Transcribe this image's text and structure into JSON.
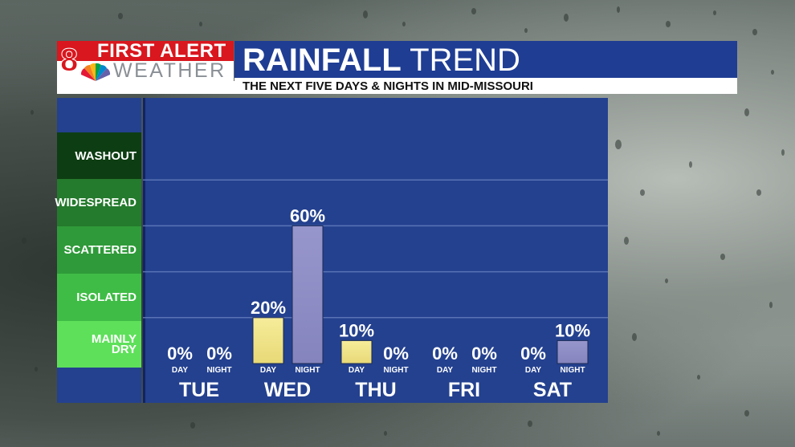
{
  "logo": {
    "number": "8",
    "line1": "FIRST ALERT",
    "line2": "WEATHER"
  },
  "header": {
    "title_bold": "RAINFALL",
    "title_rest": "TREND",
    "subtitle": "THE NEXT FIVE DAYS & NIGHTS IN MID-MISSOURI"
  },
  "colors": {
    "panel_blue": "#24418f",
    "title_blue": "#1f3d93",
    "day_bar": "#e8d977",
    "night_bar": "#8584bd",
    "brand_red": "#d9171e"
  },
  "legend": [
    {
      "label": "WASHOUT",
      "color": "#0d3d12"
    },
    {
      "label": "WIDESPREAD",
      "color": "#247a2d"
    },
    {
      "label": "SCATTERED",
      "color": "#2f9a39"
    },
    {
      "label": "ISOLATED",
      "color": "#3fbc46"
    },
    {
      "label": "MAINLY DRY",
      "color": "#5ee05a"
    }
  ],
  "chart_data": {
    "type": "bar",
    "categories": [
      "TUE",
      "WED",
      "THU",
      "FRI",
      "SAT"
    ],
    "periods": [
      "DAY",
      "NIGHT"
    ],
    "series": [
      {
        "name": "DAY",
        "values": [
          0,
          20,
          10,
          0,
          0
        ]
      },
      {
        "name": "NIGHT",
        "values": [
          0,
          60,
          0,
          0,
          10
        ]
      }
    ],
    "ylim": [
      0,
      100
    ],
    "value_suffix": "%",
    "legend_position": "left"
  }
}
